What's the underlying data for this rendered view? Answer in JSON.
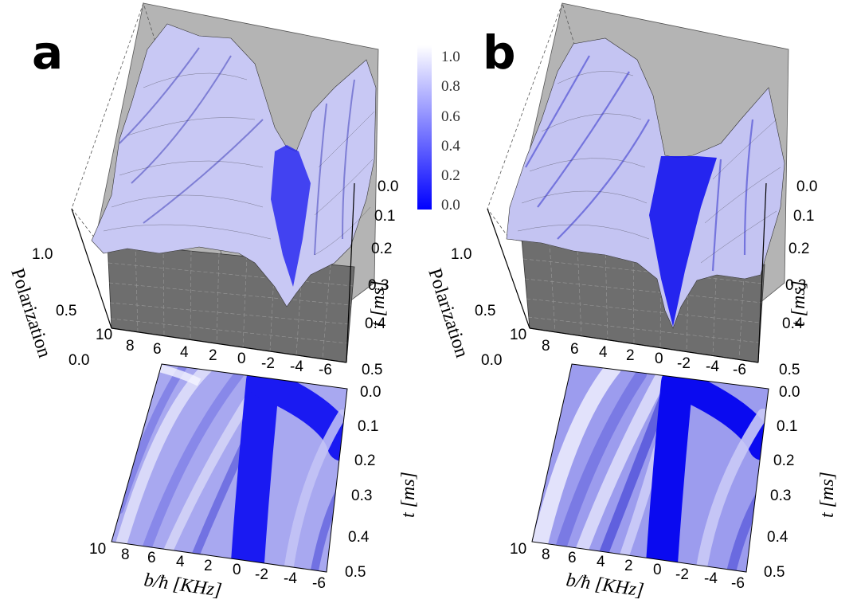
{
  "chart_data": [
    {
      "type": "surface3d",
      "panel": "a",
      "x_ticks": [
        "10",
        "8",
        "6",
        "4",
        "2",
        "0",
        "-2",
        "-4",
        "-6"
      ],
      "t_ticks": [
        "0.0",
        "0.1",
        "0.2",
        "0.3",
        "0.4",
        "0.5"
      ],
      "z_ticks": [
        "0.0",
        "0.5",
        "1.0"
      ],
      "z_label": "Polarization",
      "t_label": "t [ms]",
      "xlim": [
        10,
        -6
      ],
      "tlim": [
        0.0,
        0.5
      ],
      "zlim": [
        0.0,
        1.0
      ],
      "surface_style": "noisy experimental",
      "dip_center_x": -0.5
    },
    {
      "type": "surface3d",
      "panel": "b",
      "x_ticks": [
        "10",
        "8",
        "6",
        "4",
        "2",
        "0",
        "-2",
        "-4",
        "-6"
      ],
      "t_ticks": [
        "0.0",
        "0.1",
        "0.2",
        "0.3",
        "0.4",
        "0.5"
      ],
      "z_ticks": [
        "0.0",
        "0.5",
        "1.0"
      ],
      "z_label": "Polarization",
      "t_label": "t [ms]",
      "xlim": [
        10,
        -6
      ],
      "tlim": [
        0.0,
        0.5
      ],
      "zlim": [
        0.0,
        1.0
      ],
      "surface_style": "smooth theory",
      "dip_center_x": -0.5
    },
    {
      "type": "heatmap",
      "panel": "a",
      "x_ticks": [
        "10",
        "8",
        "6",
        "4",
        "2",
        "0",
        "-2",
        "-4",
        "-6"
      ],
      "t_ticks": [
        "0.0",
        "0.1",
        "0.2",
        "0.3",
        "0.4",
        "0.5"
      ],
      "xlabel": "b/ħ [KHz]",
      "ylabel": "t [ms]",
      "xlim": [
        10,
        -6
      ],
      "ylim": [
        0.0,
        0.5
      ],
      "style": "noisy experimental"
    },
    {
      "type": "heatmap",
      "panel": "b",
      "x_ticks": [
        "10",
        "8",
        "6",
        "4",
        "2",
        "0",
        "-2",
        "-4",
        "-6"
      ],
      "t_ticks": [
        "0.0",
        "0.1",
        "0.2",
        "0.3",
        "0.4",
        "0.5"
      ],
      "xlabel": "b/ħ [KHz]",
      "ylabel": "t [ms]",
      "xlim": [
        10,
        -6
      ],
      "ylim": [
        0.0,
        0.5
      ],
      "style": "smooth theory"
    }
  ],
  "panels": [
    {
      "letter": "a"
    },
    {
      "letter": "b"
    }
  ],
  "colorbar": {
    "ticks": [
      "1.0",
      "0.8",
      "0.6",
      "0.4",
      "0.2",
      "0.0"
    ],
    "range": [
      0.0,
      1.0
    ],
    "color_low": "#0000ff",
    "color_high": "#ffffff"
  },
  "colors": {
    "floor": "#6e6e6e",
    "back_wall": "#b4b4b4",
    "surface_low": "#1a1aff",
    "surface_high": "#f2f2ff"
  }
}
